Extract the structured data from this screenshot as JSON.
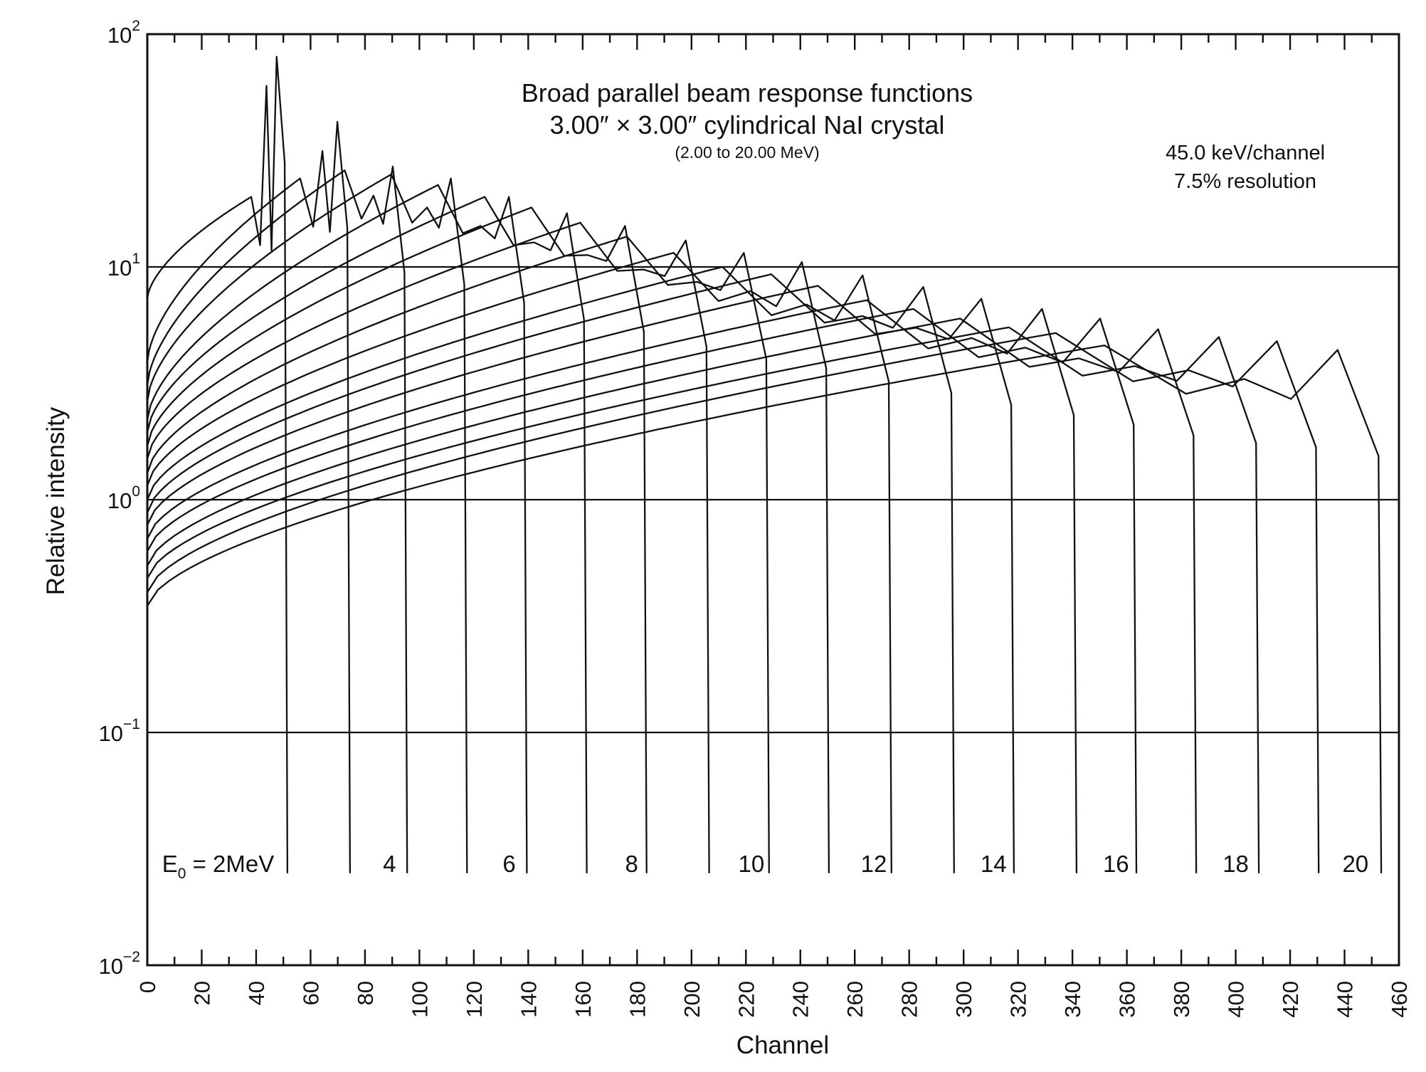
{
  "chart_data": {
    "type": "line",
    "title_lines": [
      "Broad parallel beam response functions",
      "3.00″ × 3.00″ cylindrical NaI crystal"
    ],
    "subtitle": "(2.00 to 20.00 MeV)",
    "annotations": [
      "45.0 keV/channel",
      "7.5% resolution"
    ],
    "xlabel": "Channel",
    "ylabel": "Relative intensity",
    "xlim": [
      0,
      460
    ],
    "ylim": [
      0.01,
      100
    ],
    "yscale": "log",
    "grid": "horizontal lines at each decade",
    "legend": "none",
    "x_ticks": [
      0,
      20,
      40,
      60,
      80,
      100,
      120,
      140,
      160,
      180,
      200,
      220,
      240,
      260,
      280,
      300,
      320,
      340,
      360,
      380,
      400,
      420,
      440,
      460
    ],
    "y_ticks": [
      {
        "base": "10",
        "exp": "−2"
      },
      {
        "base": "10",
        "exp": "−1"
      },
      {
        "base": "10",
        "exp": "0"
      },
      {
        "base": "10",
        "exp": "1"
      },
      {
        "base": "10",
        "exp": "2"
      }
    ],
    "y_tick_values": [
      0.01,
      0.1,
      1,
      10,
      100
    ],
    "energy_labels": [
      {
        "text": "2MeV",
        "prefix": "E",
        "sub": "0",
        "eq": " = ",
        "channel": 44
      },
      {
        "text": "4",
        "channel": 89
      },
      {
        "text": "6",
        "channel": 133
      },
      {
        "text": "8",
        "channel": 178
      },
      {
        "text": "10",
        "channel": 222
      },
      {
        "text": "12",
        "channel": 267
      },
      {
        "text": "14",
        "channel": 311
      },
      {
        "text": "16",
        "channel": 356
      },
      {
        "text": "18",
        "channel": 400
      },
      {
        "text": "20",
        "channel": 444
      }
    ],
    "series": [
      {
        "energy_mev": 2,
        "start": 7.3,
        "compton": 20.0,
        "photo": 80.0,
        "end_channel": 49
      },
      {
        "energy_mev": 3,
        "start": 3.9,
        "compton": 24.0,
        "photo": 42.0,
        "end_channel": 72
      },
      {
        "energy_mev": 4,
        "start": 3.1,
        "compton": 26.0,
        "photo": 27.0,
        "end_channel": 93
      },
      {
        "energy_mev": 5,
        "start": 2.65,
        "compton": 25.0,
        "photo": 24.0,
        "end_channel": 115
      },
      {
        "energy_mev": 6,
        "start": 2.2,
        "compton": 22.5,
        "photo": 20.0,
        "end_channel": 137
      },
      {
        "energy_mev": 7,
        "start": 1.95,
        "compton": 20.0,
        "photo": 17.0,
        "end_channel": 159
      },
      {
        "energy_mev": 8,
        "start": 1.7,
        "compton": 18.0,
        "photo": 15.0,
        "end_channel": 181
      },
      {
        "energy_mev": 9,
        "start": 1.5,
        "compton": 15.5,
        "photo": 13.0,
        "end_channel": 204
      },
      {
        "energy_mev": 10,
        "start": 1.3,
        "compton": 13.5,
        "photo": 11.5,
        "end_channel": 226
      },
      {
        "energy_mev": 11,
        "start": 1.15,
        "compton": 11.5,
        "photo": 10.5,
        "end_channel": 248
      },
      {
        "energy_mev": 12,
        "start": 1.0,
        "compton": 10.0,
        "photo": 9.2,
        "end_channel": 271
      },
      {
        "energy_mev": 13,
        "start": 0.88,
        "compton": 9.3,
        "photo": 8.2,
        "end_channel": 294
      },
      {
        "energy_mev": 14,
        "start": 0.78,
        "compton": 8.3,
        "photo": 7.3,
        "end_channel": 316
      },
      {
        "energy_mev": 15,
        "start": 0.68,
        "compton": 7.2,
        "photo": 6.6,
        "end_channel": 339
      },
      {
        "energy_mev": 16,
        "start": 0.6,
        "compton": 6.6,
        "photo": 6.0,
        "end_channel": 361
      },
      {
        "energy_mev": 17,
        "start": 0.52,
        "compton": 6.0,
        "photo": 5.4,
        "end_channel": 383
      },
      {
        "energy_mev": 18,
        "start": 0.46,
        "compton": 5.5,
        "photo": 5.0,
        "end_channel": 406
      },
      {
        "energy_mev": 19,
        "start": 0.4,
        "compton": 5.2,
        "photo": 4.8,
        "end_channel": 428
      },
      {
        "energy_mev": 20,
        "start": 0.35,
        "compton": 4.6,
        "photo": 4.4,
        "end_channel": 451
      }
    ]
  }
}
